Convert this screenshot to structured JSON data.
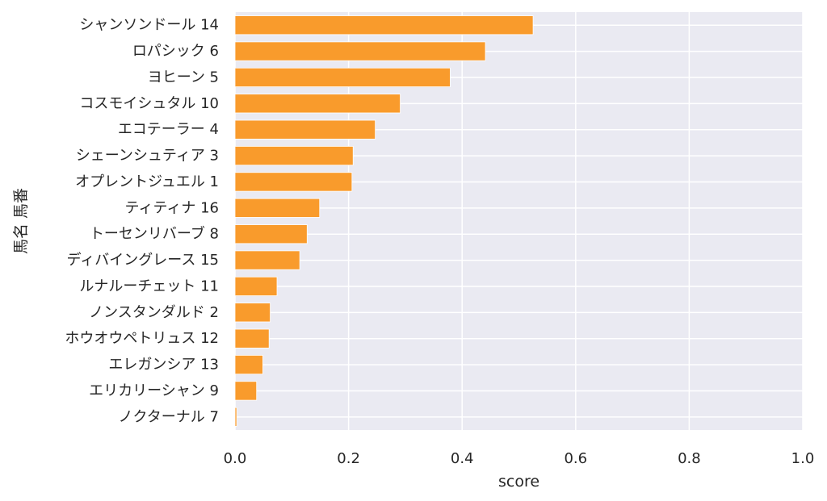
{
  "chart_data": {
    "type": "bar",
    "orientation": "horizontal",
    "categories": [
      "シャンソンドール 14",
      "ロパシック 6",
      "ヨヒーン 5",
      "コスモイシュタル 10",
      "エコテーラー 4",
      "シェーンシュティア 3",
      "オプレントジュエル 1",
      "ティティナ 16",
      "トーセンリバーブ 8",
      "ディバイングレース 15",
      "ルナルーチェット 11",
      "ノンスタンダルド 2",
      "ホウオウペトリュス 12",
      "エレガンシア 13",
      "エリカリーシャン 9",
      "ノクターナル 7"
    ],
    "values": [
      0.525,
      0.441,
      0.379,
      0.291,
      0.247,
      0.208,
      0.206,
      0.149,
      0.127,
      0.114,
      0.074,
      0.062,
      0.06,
      0.049,
      0.038,
      0.003
    ],
    "title": "",
    "xlabel": "score",
    "ylabel": "馬名 馬番",
    "xlim": [
      0.0,
      1.0
    ],
    "xticks": [
      "0.0",
      "0.2",
      "0.4",
      "0.6",
      "0.8",
      "1.0"
    ],
    "grid": true,
    "legend": "none",
    "colors": {
      "bar": "#f99b2c",
      "bar_edge": "#ffffff",
      "plot_bg": "#eaeaf2",
      "grid": "#ffffff",
      "text": "#262626"
    }
  }
}
